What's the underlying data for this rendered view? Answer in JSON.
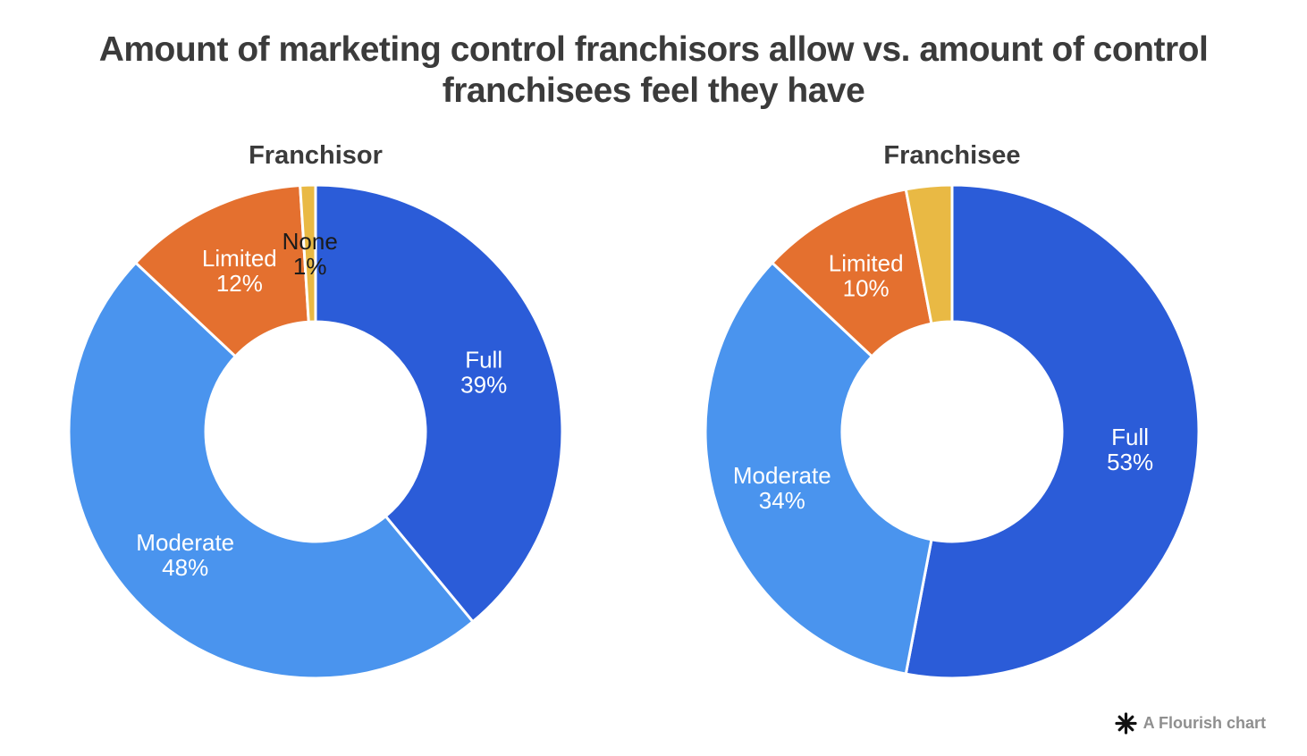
{
  "page": {
    "title_line1": "Amount of marketing control franchisors allow vs. amount of control",
    "title_line2": "franchisees feel they have"
  },
  "footer": {
    "credit": "A Flourish chart",
    "icon": "flourish-asterisk-icon"
  },
  "colors": {
    "full": "#2b5cd8",
    "moderate": "#4a94ee",
    "limited": "#e4702f",
    "none": "#e9b944",
    "heading_text": "#3b3b3b",
    "label_on_slice": "#ffffff",
    "label_dark": "#1b1b1b",
    "credit_text": "#8f8f8f",
    "slice_separator": "#ffffff"
  },
  "chart_data": [
    {
      "type": "pie",
      "variant": "donut",
      "title": "Franchisor",
      "unit": "%",
      "slice_order": "clockwise-from-top",
      "slices": [
        {
          "label": "Full",
          "value": 39,
          "pct_text": "39%",
          "color": "#2b5cd8",
          "label_color": "#ffffff",
          "show_label": true
        },
        {
          "label": "Moderate",
          "value": 48,
          "pct_text": "48%",
          "color": "#4a94ee",
          "label_color": "#ffffff",
          "show_label": true
        },
        {
          "label": "Limited",
          "value": 12,
          "pct_text": "12%",
          "color": "#e4702f",
          "label_color": "#ffffff",
          "show_label": true
        },
        {
          "label": "None",
          "value": 1,
          "pct_text": "1%",
          "color": "#e9b944",
          "label_color": "#1b1b1b",
          "show_label": true
        }
      ]
    },
    {
      "type": "pie",
      "variant": "donut",
      "title": "Franchisee",
      "unit": "%",
      "slice_order": "clockwise-from-top",
      "slices": [
        {
          "label": "Full",
          "value": 53,
          "pct_text": "53%",
          "color": "#2b5cd8",
          "label_color": "#ffffff",
          "show_label": true
        },
        {
          "label": "Moderate",
          "value": 34,
          "pct_text": "34%",
          "color": "#4a94ee",
          "label_color": "#ffffff",
          "show_label": true
        },
        {
          "label": "Limited",
          "value": 10,
          "pct_text": "10%",
          "color": "#e4702f",
          "label_color": "#ffffff",
          "show_label": true
        },
        {
          "label": "None",
          "value": 3,
          "pct_text": "",
          "color": "#e9b944",
          "label_color": "#1b1b1b",
          "show_label": false
        }
      ]
    }
  ]
}
